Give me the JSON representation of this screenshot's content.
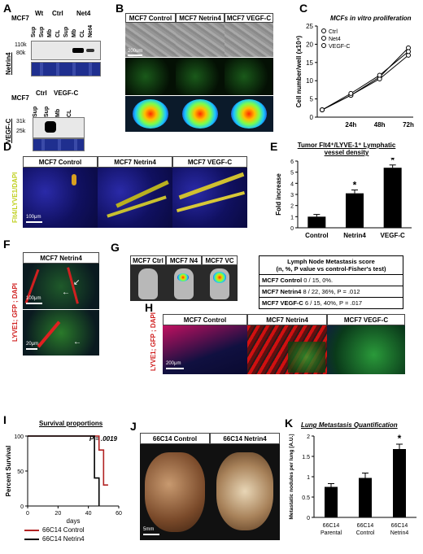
{
  "panels": {
    "A": {
      "letter": "A",
      "top": {
        "cell": "MCF7",
        "groups": [
          "Wt",
          "Ctrl",
          "Net4"
        ],
        "lanes": [
          "Sup",
          "Sup",
          "Mb",
          "CL",
          "Sup",
          "Mb",
          "CL",
          "Net4"
        ],
        "markers": [
          "110k",
          "80k"
        ],
        "side": "Netrin4"
      },
      "bottom": {
        "cell": "MCF7",
        "groups": [
          "Ctrl",
          "VEGF-C"
        ],
        "lanes": [
          "Sup",
          "Sup",
          "Mb",
          "CL"
        ],
        "markers": [
          "31k",
          "25k"
        ],
        "side": "VEGF-C"
      }
    },
    "B": {
      "letter": "B",
      "headers": [
        "MCF7 Control",
        "MCF7 Netrin4",
        "MCF7 VEGF-C"
      ],
      "scale": "200um"
    },
    "C": {
      "letter": "C",
      "chart_data": {
        "type": "line",
        "title": "MCFs in vitro proliferation",
        "xlabel": "",
        "ylabel": "Cell number/well (x10⁴)",
        "categories": [
          "0",
          "24h",
          "48h",
          "72h"
        ],
        "x_ticks": [
          "24h",
          "48h",
          "72h"
        ],
        "y_ticks": [
          "0",
          "5",
          "10",
          "15",
          "20",
          "25"
        ],
        "ylim": [
          0,
          25
        ],
        "series": [
          {
            "name": "Ctrl",
            "values": [
              2,
              6,
              11,
              19
            ]
          },
          {
            "name": "Net4",
            "values": [
              2,
              6,
              10.5,
              17
            ]
          },
          {
            "name": "VEGF-C",
            "values": [
              2,
              6.5,
              11.5,
              18
            ]
          }
        ]
      }
    },
    "D": {
      "letter": "D",
      "headers": [
        "MCF7 Control",
        "MCF7 Netrin4",
        "MCF7 VEGF-C"
      ],
      "side": "Flt4/LYVE1/DAPI",
      "scale": "100μm"
    },
    "E": {
      "letter": "E",
      "chart_data": {
        "type": "bar",
        "title": "Tumor Flt4⁺/LYVE-1⁺ Lymphatic vessel density",
        "xlabel": "",
        "ylabel": "Fold increase",
        "categories": [
          "Control",
          "Netrin4",
          "VEGF-C"
        ],
        "values": [
          1,
          3.1,
          5.4
        ],
        "errors": [
          0.2,
          0.3,
          0.25
        ],
        "significant": [
          "",
          "*",
          "*"
        ],
        "y_ticks": [
          "0",
          "1",
          "2",
          "3",
          "4",
          "5",
          "6"
        ],
        "ylim": [
          0,
          6
        ]
      }
    },
    "F": {
      "letter": "F",
      "header": "MCF7 Netrin4",
      "side": "LYVE1; GFP ; DAPI",
      "scale_top": "100μm",
      "scale_bottom": "20μm"
    },
    "G": {
      "letter": "G",
      "headers": [
        "MCF7 Ctrl",
        "MCF7 N4",
        "MCF7 VC"
      ],
      "table_title": "Lymph Node Metastasis score",
      "table_subtitle": "(n, %, P value vs control-Fisher's test)",
      "rows": [
        {
          "label": "MCF7 Control",
          "value": "0 / 15, 0%."
        },
        {
          "label": "MCF7 Netrin4",
          "value": "8 / 22, 36%, P = .012"
        },
        {
          "label": "MCF7 VEGF-C",
          "value": "6 / 15, 40%, P = .017"
        }
      ]
    },
    "H": {
      "letter": "H",
      "headers": [
        "MCF7 Control",
        "MCF7 Netrin4",
        "MCF7 VEGF-C"
      ],
      "side": "LYVE1; GFP ; DAPI",
      "scale": "200μm"
    },
    "I": {
      "letter": "I",
      "chart_data": {
        "type": "line",
        "title": "Survival proportions",
        "xlabel": "days",
        "ylabel": "Percent Survival",
        "annotation": "P = .0019",
        "x_ticks": [
          "0",
          "20",
          "40",
          "60"
        ],
        "y_ticks": [
          "0",
          "50",
          "100"
        ],
        "xlim": [
          0,
          60
        ],
        "ylim": [
          0,
          100
        ],
        "series": [
          {
            "name": "66C14 Control",
            "color": "#b22222",
            "steps": [
              [
                0,
                100
              ],
              [
                47,
                100
              ],
              [
                47,
                80
              ],
              [
                50,
                80
              ],
              [
                50,
                30
              ],
              [
                53,
                30
              ]
            ]
          },
          {
            "name": "66C14 Netrin4",
            "color": "#000000",
            "steps": [
              [
                0,
                100
              ],
              [
                44,
                100
              ],
              [
                44,
                40
              ],
              [
                47,
                40
              ],
              [
                47,
                0
              ]
            ]
          }
        ]
      }
    },
    "J": {
      "letter": "J",
      "headers": [
        "66C14 Control",
        "66C14 Netrin4"
      ],
      "scale": "5mm"
    },
    "K": {
      "letter": "K",
      "chart_data": {
        "type": "bar",
        "title": "Lung Metastasis Quantification",
        "xlabel": "",
        "ylabel": "Metastatic nodules per lung [A.U.]",
        "categories": [
          "66C14 Parental",
          "66C14 Control",
          "66C14 Netrin4"
        ],
        "values": [
          0.75,
          0.97,
          1.68
        ],
        "errors": [
          0.08,
          0.12,
          0.12
        ],
        "significant": [
          "",
          "",
          "*"
        ],
        "y_ticks": [
          "0",
          "0.5",
          "1",
          "1.5",
          "2"
        ],
        "ylim": [
          0,
          2
        ]
      }
    }
  }
}
